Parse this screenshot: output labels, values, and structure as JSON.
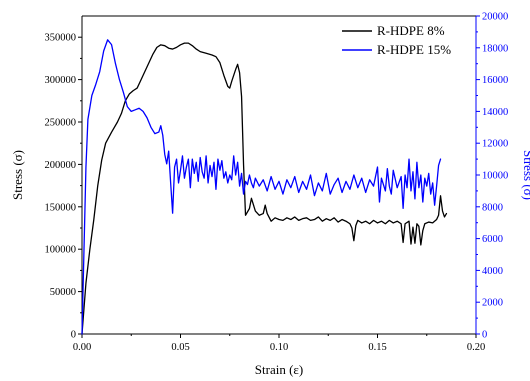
{
  "chart_data": {
    "type": "line",
    "xlabel": "Strain (ε)",
    "ylabel_left": "Stress (σ)",
    "ylabel_right": "Stress (σ)",
    "xlim": [
      0.0,
      0.2
    ],
    "ylim_left": [
      0,
      375000
    ],
    "ylim_right": [
      0,
      20000
    ],
    "x_ticks": [
      "0.00",
      "0.05",
      "0.10",
      "0.15",
      "0.20"
    ],
    "y_left_ticks": [
      "0",
      "50000",
      "100000",
      "150000",
      "200000",
      "250000",
      "300000",
      "350000"
    ],
    "y_right_ticks": [
      "0",
      "2000",
      "4000",
      "6000",
      "8000",
      "10000",
      "12000",
      "14000",
      "16000",
      "18000",
      "20000"
    ],
    "legend_position": "top-right",
    "grid": false,
    "series": [
      {
        "name": "R-HDPE 8%",
        "axis": "left",
        "color": "#000000",
        "points": [
          [
            0.0,
            0
          ],
          [
            0.002,
            60000
          ],
          [
            0.004,
            100000
          ],
          [
            0.006,
            135000
          ],
          [
            0.008,
            175000
          ],
          [
            0.01,
            205000
          ],
          [
            0.012,
            225000
          ],
          [
            0.015,
            238000
          ],
          [
            0.018,
            250000
          ],
          [
            0.02,
            260000
          ],
          [
            0.022,
            275000
          ],
          [
            0.024,
            283000
          ],
          [
            0.026,
            287000
          ],
          [
            0.028,
            290000
          ],
          [
            0.03,
            300000
          ],
          [
            0.033,
            315000
          ],
          [
            0.036,
            330000
          ],
          [
            0.038,
            338000
          ],
          [
            0.04,
            341000
          ],
          [
            0.042,
            340000
          ],
          [
            0.044,
            337000
          ],
          [
            0.046,
            336000
          ],
          [
            0.048,
            338000
          ],
          [
            0.05,
            341000
          ],
          [
            0.052,
            343000
          ],
          [
            0.054,
            343000
          ],
          [
            0.056,
            340000
          ],
          [
            0.058,
            336000
          ],
          [
            0.06,
            333000
          ],
          [
            0.063,
            331000
          ],
          [
            0.066,
            329000
          ],
          [
            0.068,
            327000
          ],
          [
            0.07,
            320000
          ],
          [
            0.072,
            305000
          ],
          [
            0.074,
            292000
          ],
          [
            0.075,
            290000
          ],
          [
            0.076,
            298000
          ],
          [
            0.078,
            312000
          ],
          [
            0.079,
            318000
          ],
          [
            0.08,
            308000
          ],
          [
            0.081,
            280000
          ],
          [
            0.082,
            200000
          ],
          [
            0.083,
            140000
          ],
          [
            0.085,
            148000
          ],
          [
            0.086,
            160000
          ],
          [
            0.088,
            145000
          ],
          [
            0.09,
            140000
          ],
          [
            0.092,
            142000
          ],
          [
            0.093,
            152000
          ],
          [
            0.094,
            142000
          ],
          [
            0.096,
            133000
          ],
          [
            0.098,
            137000
          ],
          [
            0.1,
            135000
          ],
          [
            0.102,
            134000
          ],
          [
            0.104,
            137000
          ],
          [
            0.106,
            135000
          ],
          [
            0.108,
            138000
          ],
          [
            0.11,
            134000
          ],
          [
            0.112,
            136000
          ],
          [
            0.114,
            137000
          ],
          [
            0.116,
            134000
          ],
          [
            0.118,
            135000
          ],
          [
            0.12,
            138000
          ],
          [
            0.122,
            133000
          ],
          [
            0.124,
            136000
          ],
          [
            0.126,
            134000
          ],
          [
            0.128,
            137000
          ],
          [
            0.13,
            132000
          ],
          [
            0.132,
            135000
          ],
          [
            0.134,
            133000
          ],
          [
            0.136,
            130000
          ],
          [
            0.137,
            125000
          ],
          [
            0.138,
            110000
          ],
          [
            0.139,
            128000
          ],
          [
            0.14,
            134000
          ],
          [
            0.142,
            131000
          ],
          [
            0.144,
            133000
          ],
          [
            0.146,
            130000
          ],
          [
            0.148,
            134000
          ],
          [
            0.15,
            131000
          ],
          [
            0.152,
            133000
          ],
          [
            0.154,
            130000
          ],
          [
            0.156,
            134000
          ],
          [
            0.158,
            131000
          ],
          [
            0.16,
            133000
          ],
          [
            0.162,
            130000
          ],
          [
            0.163,
            108000
          ],
          [
            0.164,
            130000
          ],
          [
            0.166,
            133000
          ],
          [
            0.167,
            106000
          ],
          [
            0.168,
            126000
          ],
          [
            0.169,
            107000
          ],
          [
            0.17,
            130000
          ],
          [
            0.171,
            127000
          ],
          [
            0.172,
            105000
          ],
          [
            0.173,
            122000
          ],
          [
            0.174,
            130000
          ],
          [
            0.176,
            132000
          ],
          [
            0.178,
            131000
          ],
          [
            0.18,
            135000
          ],
          [
            0.181,
            140000
          ],
          [
            0.182,
            163000
          ],
          [
            0.183,
            145000
          ],
          [
            0.184,
            138000
          ],
          [
            0.185,
            142000
          ]
        ]
      },
      {
        "name": "R-HDPE 15%",
        "axis": "right",
        "color": "#0000ff",
        "points": [
          [
            0.0,
            0
          ],
          [
            0.002,
            10500
          ],
          [
            0.003,
            13500
          ],
          [
            0.005,
            15000
          ],
          [
            0.007,
            15700
          ],
          [
            0.009,
            16500
          ],
          [
            0.011,
            17800
          ],
          [
            0.013,
            18500
          ],
          [
            0.015,
            18200
          ],
          [
            0.017,
            17000
          ],
          [
            0.019,
            16000
          ],
          [
            0.021,
            15200
          ],
          [
            0.023,
            14300
          ],
          [
            0.025,
            14000
          ],
          [
            0.027,
            14100
          ],
          [
            0.029,
            14200
          ],
          [
            0.031,
            14000
          ],
          [
            0.033,
            13600
          ],
          [
            0.035,
            13000
          ],
          [
            0.037,
            12600
          ],
          [
            0.039,
            12700
          ],
          [
            0.04,
            13100
          ],
          [
            0.041,
            12500
          ],
          [
            0.042,
            11300
          ],
          [
            0.043,
            10700
          ],
          [
            0.044,
            11500
          ],
          [
            0.045,
            9500
          ],
          [
            0.046,
            7600
          ],
          [
            0.047,
            10500
          ],
          [
            0.048,
            11000
          ],
          [
            0.049,
            9500
          ],
          [
            0.05,
            10300
          ],
          [
            0.051,
            11200
          ],
          [
            0.052,
            9800
          ],
          [
            0.053,
            10500
          ],
          [
            0.054,
            11000
          ],
          [
            0.055,
            9200
          ],
          [
            0.056,
            11000
          ],
          [
            0.057,
            10100
          ],
          [
            0.058,
            10800
          ],
          [
            0.059,
            9600
          ],
          [
            0.06,
            11100
          ],
          [
            0.061,
            10200
          ],
          [
            0.062,
            9800
          ],
          [
            0.063,
            11200
          ],
          [
            0.064,
            9500
          ],
          [
            0.065,
            10600
          ],
          [
            0.066,
            9900
          ],
          [
            0.067,
            10800
          ],
          [
            0.068,
            9100
          ],
          [
            0.069,
            11000
          ],
          [
            0.07,
            10300
          ],
          [
            0.071,
            10900
          ],
          [
            0.072,
            9800
          ],
          [
            0.073,
            10200
          ],
          [
            0.074,
            9500
          ],
          [
            0.075,
            10000
          ],
          [
            0.076,
            9700
          ],
          [
            0.077,
            11200
          ],
          [
            0.078,
            10000
          ],
          [
            0.079,
            10800
          ],
          [
            0.08,
            9300
          ],
          [
            0.081,
            10100
          ],
          [
            0.082,
            8800
          ],
          [
            0.083,
            9600
          ],
          [
            0.084,
            9400
          ],
          [
            0.085,
            10000
          ],
          [
            0.086,
            9500
          ],
          [
            0.087,
            9200
          ],
          [
            0.088,
            9800
          ],
          [
            0.09,
            9300
          ],
          [
            0.092,
            9700
          ],
          [
            0.094,
            9000
          ],
          [
            0.096,
            9900
          ],
          [
            0.098,
            9100
          ],
          [
            0.1,
            9600
          ],
          [
            0.102,
            8800
          ],
          [
            0.104,
            9700
          ],
          [
            0.106,
            9200
          ],
          [
            0.108,
            9900
          ],
          [
            0.11,
            8900
          ],
          [
            0.112,
            9600
          ],
          [
            0.114,
            9100
          ],
          [
            0.116,
            10000
          ],
          [
            0.118,
            8700
          ],
          [
            0.12,
            9500
          ],
          [
            0.122,
            9000
          ],
          [
            0.124,
            10100
          ],
          [
            0.126,
            8800
          ],
          [
            0.128,
            9400
          ],
          [
            0.13,
            9800
          ],
          [
            0.132,
            8900
          ],
          [
            0.134,
            9600
          ],
          [
            0.136,
            9100
          ],
          [
            0.138,
            10000
          ],
          [
            0.14,
            9200
          ],
          [
            0.142,
            9800
          ],
          [
            0.144,
            8900
          ],
          [
            0.146,
            9700
          ],
          [
            0.148,
            9300
          ],
          [
            0.15,
            10500
          ],
          [
            0.151,
            8300
          ],
          [
            0.152,
            9800
          ],
          [
            0.154,
            9000
          ],
          [
            0.155,
            10400
          ],
          [
            0.156,
            9300
          ],
          [
            0.157,
            8800
          ],
          [
            0.158,
            10300
          ],
          [
            0.16,
            9200
          ],
          [
            0.162,
            9900
          ],
          [
            0.163,
            7900
          ],
          [
            0.164,
            10000
          ],
          [
            0.165,
            9200
          ],
          [
            0.166,
            11000
          ],
          [
            0.167,
            9000
          ],
          [
            0.168,
            10200
          ],
          [
            0.169,
            8500
          ],
          [
            0.17,
            10800
          ],
          [
            0.171,
            9200
          ],
          [
            0.172,
            10000
          ],
          [
            0.173,
            8300
          ],
          [
            0.174,
            9800
          ],
          [
            0.175,
            9300
          ],
          [
            0.176,
            10100
          ],
          [
            0.177,
            8800
          ],
          [
            0.178,
            9500
          ],
          [
            0.179,
            8100
          ],
          [
            0.18,
            9300
          ],
          [
            0.181,
            10600
          ],
          [
            0.182,
            11000
          ]
        ]
      }
    ]
  }
}
